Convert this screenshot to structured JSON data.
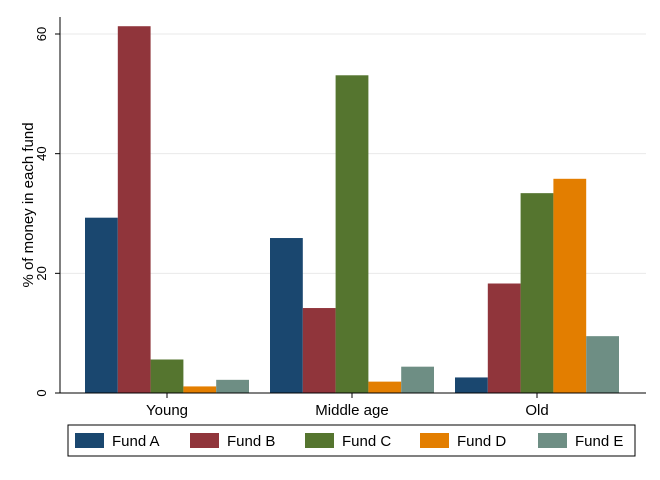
{
  "chart_data": {
    "type": "bar",
    "categories": [
      "Young",
      "Middle age",
      "Old"
    ],
    "series": [
      {
        "name": "Fund A",
        "color": "#1a476f",
        "values": [
          29.3,
          25.9,
          2.6
        ]
      },
      {
        "name": "Fund B",
        "color": "#90353b",
        "values": [
          61.3,
          14.2,
          18.3
        ]
      },
      {
        "name": "Fund C",
        "color": "#55752f",
        "values": [
          5.6,
          53.1,
          33.4
        ]
      },
      {
        "name": "Fund D",
        "color": "#e37e00",
        "values": [
          1.1,
          1.9,
          35.8
        ]
      },
      {
        "name": "Fund E",
        "color": "#6e8e84",
        "values": [
          2.2,
          4.4,
          9.5
        ]
      }
    ],
    "title": "",
    "xlabel": "",
    "ylabel": "% of money in each fund",
    "ylim": [
      0,
      60
    ],
    "yticks": [
      0,
      20,
      40,
      60
    ],
    "grid": true,
    "legend_position": "bottom"
  }
}
